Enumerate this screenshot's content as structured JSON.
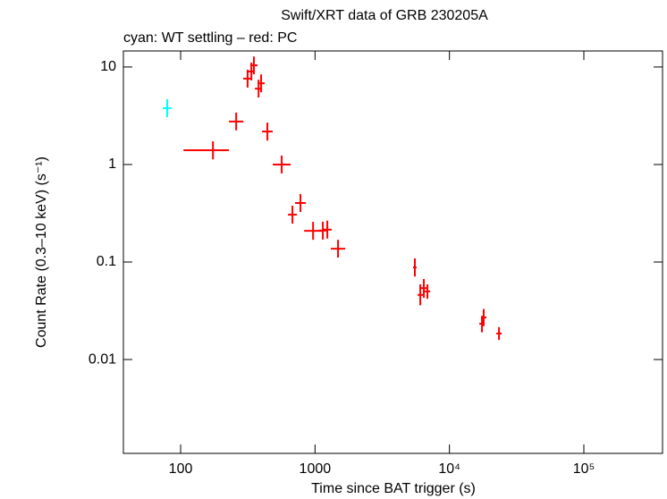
{
  "chart_data": {
    "type": "scatter",
    "title": "Swift/XRT data of GRB 230205A",
    "subtitle": "cyan: WT settling – red: PC",
    "x_label": "Time since BAT trigger (s)",
    "y_label": "Count Rate (0.3–10 keV) (s⁻¹)",
    "x_log": true,
    "y_log": true,
    "xlim": [
      37.5,
      385000
    ],
    "ylim": [
      0.00109,
      14.6
    ],
    "xticks": [
      100,
      1000,
      {
        "value": 10000,
        "label": "10⁴"
      },
      {
        "value": 100000,
        "label": "10⁵"
      }
    ],
    "yticks": [
      10,
      1,
      0.1,
      0.01
    ],
    "series": [
      {
        "color": "#00ffff",
        "x": [
          79.4
        ],
        "values": [
          3.78
        ],
        "x_low": [
          73.7
        ],
        "x_high": [
          85.6
        ],
        "y_low": [
          3.06
        ],
        "y_high": [
          4.67
        ]
      },
      {
        "color": "#ff0000",
        "x": [
          174,
          259,
          315,
          336,
          351,
          380,
          397,
          442,
          565,
          679,
          779,
          967,
          1143,
          1234,
          1483,
          5530,
          6070,
          6450,
          6860,
          17460,
          17990,
          23370
        ],
        "values": [
          1.4,
          2.76,
          7.6,
          9.0,
          10.4,
          6.0,
          6.8,
          2.18,
          1.0,
          0.306,
          0.403,
          0.209,
          0.21,
          0.215,
          0.137,
          0.088,
          0.046,
          0.054,
          0.05,
          0.0233,
          0.027,
          0.0185
        ],
        "x_low": [
          105,
          229,
          292,
          316,
          330,
          357,
          373,
          403,
          485,
          629,
          711,
          830,
          1059,
          1144,
          1312,
          5364,
          5798,
          6161,
          6552,
          16680,
          17180,
          22320
        ],
        "x_high": [
          229,
          293,
          340,
          357,
          373,
          404,
          422,
          484,
          658,
          733,
          854,
          1127,
          1233,
          1332,
          1676,
          5701,
          6355,
          6753,
          7182,
          18280,
          18830,
          24470
        ],
        "y_low": [
          1.13,
          2.24,
          6.15,
          7.29,
          8.4,
          4.86,
          5.5,
          1.76,
          0.81,
          0.248,
          0.326,
          0.169,
          0.17,
          0.174,
          0.111,
          0.071,
          0.036,
          0.043,
          0.042,
          0.019,
          0.022,
          0.0159
        ],
        "y_high": [
          1.73,
          3.41,
          9.39,
          11.1,
          12.8,
          7.41,
          8.4,
          2.69,
          1.235,
          0.378,
          0.498,
          0.258,
          0.259,
          0.266,
          0.169,
          0.109,
          0.059,
          0.067,
          0.059,
          0.028,
          0.033,
          0.0215
        ]
      }
    ]
  }
}
